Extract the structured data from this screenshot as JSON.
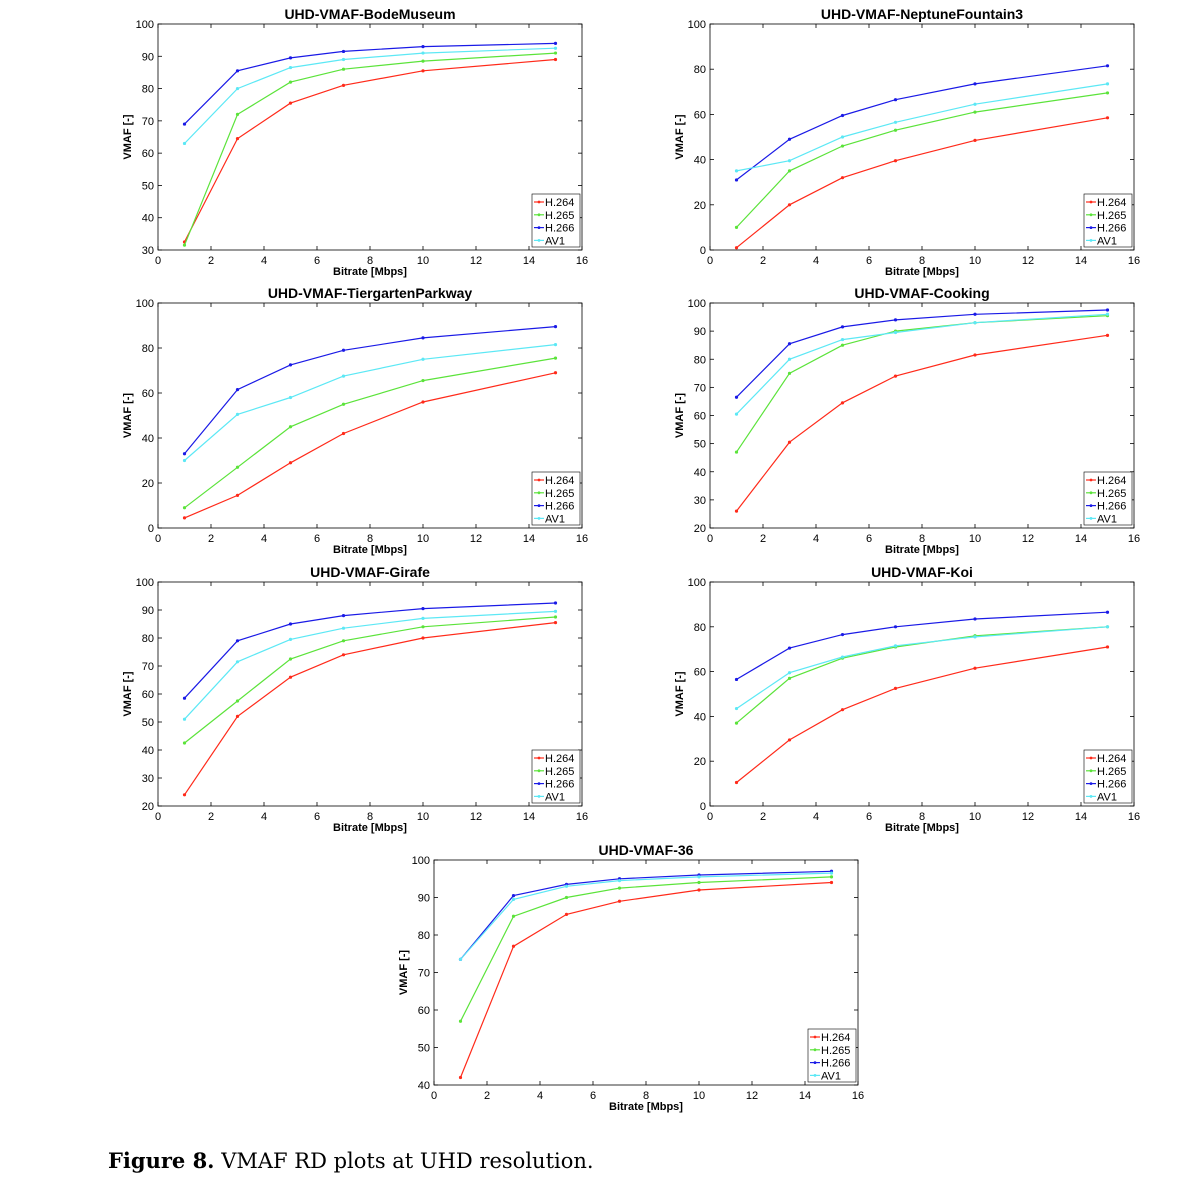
{
  "caption": {
    "label": "Figure 8.",
    "text": "VMAF RD plots at UHD resolution."
  },
  "colors": {
    "H.264": "#ff2a1a",
    "H.265": "#5be33a",
    "H.266": "#1a1ae6",
    "AV1": "#5ce8f5"
  },
  "chart_data": [
    {
      "type": "line",
      "title": "UHD-VMAF-BodeMuseum",
      "xlabel": "Bitrate [Mbps]",
      "ylabel": "VMAF [-]",
      "xlim": [
        0,
        16
      ],
      "ylim": [
        30,
        100
      ],
      "xticks": [
        0,
        2,
        4,
        6,
        8,
        10,
        12,
        14,
        16
      ],
      "yticks": [
        30,
        40,
        50,
        60,
        70,
        80,
        90,
        100
      ],
      "legend_position": "bottom-right",
      "x": [
        1,
        3,
        5,
        7,
        10,
        15
      ],
      "series": [
        {
          "name": "H.264",
          "values": [
            32.5,
            64.5,
            75.5,
            81,
            85.5,
            89
          ]
        },
        {
          "name": "H.265",
          "values": [
            31.5,
            72,
            82,
            86,
            88.5,
            91
          ]
        },
        {
          "name": "H.266",
          "values": [
            69,
            85.5,
            89.5,
            91.5,
            93,
            94
          ]
        },
        {
          "name": "AV1",
          "values": [
            63,
            80,
            86.5,
            89,
            91,
            92.5
          ]
        }
      ]
    },
    {
      "type": "line",
      "title": "UHD-VMAF-NeptuneFountain3",
      "xlabel": "Bitrate [Mbps]",
      "ylabel": "VMAF [-]",
      "xlim": [
        0,
        16
      ],
      "ylim": [
        0,
        100
      ],
      "xticks": [
        0,
        2,
        4,
        6,
        8,
        10,
        12,
        14,
        16
      ],
      "yticks": [
        0,
        20,
        40,
        60,
        80,
        100
      ],
      "legend_position": "bottom-right",
      "x": [
        1,
        3,
        5,
        7,
        10,
        15
      ],
      "series": [
        {
          "name": "H.264",
          "values": [
            1,
            20,
            32,
            39.5,
            48.5,
            58.5
          ]
        },
        {
          "name": "H.265",
          "values": [
            10,
            35,
            46,
            53,
            61,
            69.5
          ]
        },
        {
          "name": "H.266",
          "values": [
            31,
            49,
            59.5,
            66.5,
            73.5,
            81.5
          ]
        },
        {
          "name": "AV1",
          "values": [
            35,
            39.5,
            50,
            56.5,
            64.5,
            73.5
          ]
        }
      ]
    },
    {
      "type": "line",
      "title": "UHD-VMAF-TiergartenParkway",
      "xlabel": "Bitrate [Mbps]",
      "ylabel": "VMAF [-]",
      "xlim": [
        0,
        16
      ],
      "ylim": [
        0,
        100
      ],
      "xticks": [
        0,
        2,
        4,
        6,
        8,
        10,
        12,
        14,
        16
      ],
      "yticks": [
        0,
        20,
        40,
        60,
        80,
        100
      ],
      "legend_position": "bottom-right",
      "x": [
        1,
        3,
        5,
        7,
        10,
        15
      ],
      "series": [
        {
          "name": "H.264",
          "values": [
            4.5,
            14.5,
            29,
            42,
            56,
            69
          ]
        },
        {
          "name": "H.265",
          "values": [
            9,
            27,
            45,
            55,
            65.5,
            75.5
          ]
        },
        {
          "name": "H.266",
          "values": [
            33,
            61.5,
            72.5,
            79,
            84.5,
            89.5
          ]
        },
        {
          "name": "AV1",
          "values": [
            30,
            50.5,
            58,
            67.5,
            75,
            81.5
          ]
        }
      ]
    },
    {
      "type": "line",
      "title": "UHD-VMAF-Cooking",
      "xlabel": "Bitrate [Mbps]",
      "ylabel": "VMAF [-]",
      "xlim": [
        0,
        16
      ],
      "ylim": [
        20,
        100
      ],
      "xticks": [
        0,
        2,
        4,
        6,
        8,
        10,
        12,
        14,
        16
      ],
      "yticks": [
        20,
        30,
        40,
        50,
        60,
        70,
        80,
        90,
        100
      ],
      "legend_position": "bottom-right",
      "x": [
        1,
        3,
        5,
        7,
        10,
        15
      ],
      "series": [
        {
          "name": "H.264",
          "values": [
            26,
            50.5,
            64.5,
            74,
            81.5,
            88.5
          ]
        },
        {
          "name": "H.265",
          "values": [
            47,
            75,
            85,
            90,
            93,
            95.5
          ]
        },
        {
          "name": "H.266",
          "values": [
            66.5,
            85.5,
            91.5,
            94,
            96,
            97.5
          ]
        },
        {
          "name": "AV1",
          "values": [
            60.5,
            80,
            87,
            89.5,
            93,
            96
          ]
        }
      ]
    },
    {
      "type": "line",
      "title": "UHD-VMAF-Girafe",
      "xlabel": "Bitrate [Mbps]",
      "ylabel": "VMAF [-]",
      "xlim": [
        0,
        16
      ],
      "ylim": [
        20,
        100
      ],
      "xticks": [
        0,
        2,
        4,
        6,
        8,
        10,
        12,
        14,
        16
      ],
      "yticks": [
        20,
        30,
        40,
        50,
        60,
        70,
        80,
        90,
        100
      ],
      "legend_position": "bottom-right",
      "x": [
        1,
        3,
        5,
        7,
        10,
        15
      ],
      "series": [
        {
          "name": "H.264",
          "values": [
            24,
            52,
            66,
            74,
            80,
            85.5
          ]
        },
        {
          "name": "H.265",
          "values": [
            42.5,
            57.5,
            72.5,
            79,
            84,
            87.5
          ]
        },
        {
          "name": "H.266",
          "values": [
            58.5,
            79,
            85,
            88,
            90.5,
            92.5
          ]
        },
        {
          "name": "AV1",
          "values": [
            51,
            71.5,
            79.5,
            83.5,
            87,
            89.5
          ]
        }
      ]
    },
    {
      "type": "line",
      "title": "UHD-VMAF-Koi",
      "xlabel": "Bitrate [Mbps]",
      "ylabel": "VMAF [-]",
      "xlim": [
        0,
        16
      ],
      "ylim": [
        0,
        100
      ],
      "xticks": [
        0,
        2,
        4,
        6,
        8,
        10,
        12,
        14,
        16
      ],
      "yticks": [
        0,
        20,
        40,
        60,
        80,
        100
      ],
      "legend_position": "bottom-right",
      "x": [
        1,
        3,
        5,
        7,
        10,
        15
      ],
      "series": [
        {
          "name": "H.264",
          "values": [
            10.5,
            29.5,
            43,
            52.5,
            61.5,
            71
          ]
        },
        {
          "name": "H.265",
          "values": [
            37,
            57,
            66,
            71,
            76,
            80
          ]
        },
        {
          "name": "H.266",
          "values": [
            56.5,
            70.5,
            76.5,
            80,
            83.5,
            86.5
          ]
        },
        {
          "name": "AV1",
          "values": [
            43.5,
            59.5,
            66.5,
            71.5,
            75.5,
            80
          ]
        }
      ]
    },
    {
      "type": "line",
      "title": "UHD-VMAF-36",
      "xlabel": "Bitrate [Mbps]",
      "ylabel": "VMAF [-]",
      "xlim": [
        0,
        16
      ],
      "ylim": [
        40,
        100
      ],
      "xticks": [
        0,
        2,
        4,
        6,
        8,
        10,
        12,
        14,
        16
      ],
      "yticks": [
        40,
        50,
        60,
        70,
        80,
        90,
        100
      ],
      "legend_position": "bottom-right",
      "x": [
        1,
        3,
        5,
        7,
        10,
        15
      ],
      "series": [
        {
          "name": "H.264",
          "values": [
            42,
            77,
            85.5,
            89,
            92,
            94
          ]
        },
        {
          "name": "H.265",
          "values": [
            57,
            85,
            90,
            92.5,
            94,
            95.5
          ]
        },
        {
          "name": "H.266",
          "values": [
            73.5,
            90.5,
            93.5,
            95,
            96,
            97
          ]
        },
        {
          "name": "AV1",
          "values": [
            73.5,
            89.5,
            93,
            94.5,
            95.5,
            96.5
          ]
        }
      ]
    }
  ]
}
